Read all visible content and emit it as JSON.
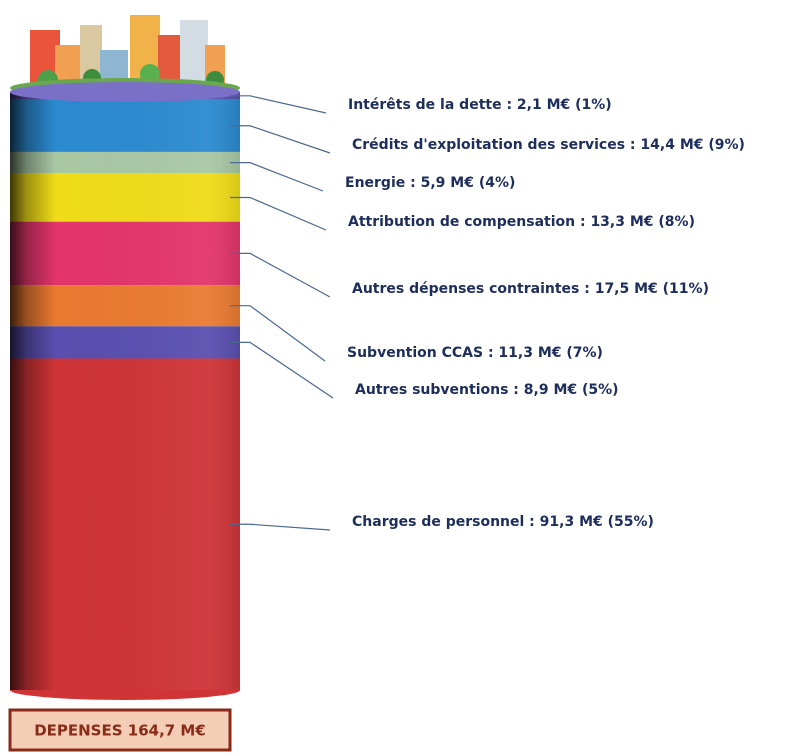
{
  "chart_data": {
    "type": "stacked-cylinder",
    "ylim": [
      0,
      164.7
    ],
    "series": [
      {
        "name": "Intérêts de la dette : 2,1 M€  (1%)",
        "color": "#5a4fb0",
        "values": [
          2.1
        ]
      },
      {
        "name": "Crédits d'exploitation des services : 14,4 M€  (9%)",
        "color": "#2b8ad0",
        "values": [
          14.4
        ]
      },
      {
        "name": "Energie : 5,9 M€  (4%)",
        "color": "#a8c8a4",
        "values": [
          5.9
        ]
      },
      {
        "name": "Attribution de compensation : 13,3 M€  (8%)",
        "color": "#f0dc18",
        "values": [
          13.3
        ]
      },
      {
        "name": "Autres dépenses contraintes : 17,5 M€  (11%)",
        "color": "#e3356c",
        "values": [
          17.5
        ]
      },
      {
        "name": "Subvention CCAS : 11,3 M€  (7%)",
        "color": "#ea7a30",
        "values": [
          11.3
        ]
      },
      {
        "name": "Autres subventions : 8,9 M€  (5%)",
        "color": "#5a4fb0",
        "values": [
          8.9
        ]
      },
      {
        "name": "Charges de personnel : 91,3 M€  (55%)",
        "color": "#cf3437",
        "values": [
          91.3
        ]
      }
    ],
    "total_label": "DEPENSES 164,7 M€"
  }
}
